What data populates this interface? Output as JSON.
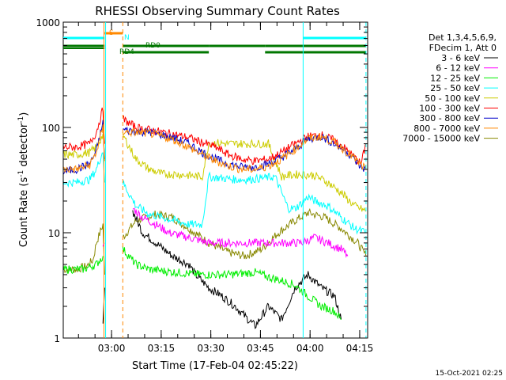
{
  "chart_data": {
    "type": "line",
    "title": "RHESSI Observing Summary Count Rates",
    "xlabel": "Start Time (17-Feb-04 02:45:22)",
    "ylabel_main": "Count Rate (s",
    "ylabel_sup1": "-1",
    "ylabel_mid": " detector",
    "ylabel_sup2": "-1",
    "ylabel_end": ")",
    "y_scale": "log",
    "ylim": [
      1,
      1000
    ],
    "xlim_minutes": [
      0,
      92
    ],
    "x_ticks": [
      {
        "label": "03:00",
        "m": 14.6
      },
      {
        "label": "03:15",
        "m": 29.6
      },
      {
        "label": "03:30",
        "m": 44.6
      },
      {
        "label": "03:45",
        "m": 59.6
      },
      {
        "label": "04:00",
        "m": 74.6
      },
      {
        "label": "04:15",
        "m": 89.6
      }
    ],
    "y_ticks": [
      {
        "label": "1",
        "v": 1
      },
      {
        "label": "10",
        "v": 10
      },
      {
        "label": "100",
        "v": 100
      },
      {
        "label": "1000",
        "v": 1000
      }
    ],
    "legend": {
      "header1": "Det 1,3,4,5,6,9,",
      "header2": "FDecim 1, Att 0",
      "entries": [
        {
          "label": "3 - 6 keV",
          "color": "#000000"
        },
        {
          "label": "6 - 12 keV",
          "color": "#ff00ff"
        },
        {
          "label": "12 - 25 keV",
          "color": "#00ee00"
        },
        {
          "label": "25 - 50 keV",
          "color": "#00ffff"
        },
        {
          "label": "50 - 100 keV",
          "color": "#cccc00"
        },
        {
          "label": "100 - 300 keV",
          "color": "#ff0000"
        },
        {
          "label": "300 - 800 keV",
          "color": "#0000cc"
        },
        {
          "label": "800 - 7000 keV",
          "color": "#ff8800"
        },
        {
          "label": "7000 - 15000 keV",
          "color": "#888800"
        }
      ]
    },
    "flags": {
      "saa_label": "S",
      "night_label": "N",
      "rd4_label": "RD4",
      "rd0_label": "RD0",
      "saa_color": "#ff8800",
      "night_color": "#00ffff",
      "rd_color": "#007700"
    },
    "series": [
      {
        "color": "#888800",
        "points": [
          [
            0,
            4.5
          ],
          [
            4,
            4.5
          ],
          [
            7,
            4.8
          ],
          [
            9,
            5.5
          ],
          [
            10,
            8
          ],
          [
            12,
            12
          ],
          [
            12.5,
            4
          ]
        ],
        "points2": [
          [
            18,
            9
          ],
          [
            22,
            13
          ],
          [
            28,
            15
          ],
          [
            33,
            14
          ],
          [
            38,
            11
          ],
          [
            44,
            8
          ],
          [
            50,
            6.5
          ],
          [
            55,
            6
          ],
          [
            60,
            7
          ],
          [
            65,
            10
          ],
          [
            70,
            13
          ],
          [
            74,
            15.5
          ],
          [
            79,
            14
          ],
          [
            84,
            11
          ],
          [
            89,
            8
          ],
          [
            91.5,
            6
          ]
        ]
      },
      {
        "color": "#000000",
        "points": [
          [
            12,
            1.5
          ],
          [
            12.5,
            3
          ]
        ],
        "points2": [
          [
            21,
            16
          ],
          [
            24,
            10
          ],
          [
            28,
            8
          ],
          [
            33,
            6
          ],
          [
            38,
            5
          ],
          [
            40,
            4
          ],
          [
            44,
            3
          ],
          [
            48,
            2.5
          ],
          [
            52,
            2
          ],
          [
            55,
            1.6
          ],
          [
            58,
            1.3
          ],
          [
            62,
            2
          ],
          [
            66,
            1.5
          ],
          [
            70,
            3
          ],
          [
            74,
            4
          ],
          [
            78,
            3
          ],
          [
            82,
            2.5
          ],
          [
            84,
            1.5
          ]
        ]
      },
      {
        "color": "#ff00ff",
        "points": [
          [
            12,
            7
          ],
          [
            12.5,
            8
          ]
        ],
        "points2": [
          [
            21,
            17
          ],
          [
            24,
            14
          ],
          [
            28,
            12
          ],
          [
            32,
            10
          ],
          [
            38,
            9
          ],
          [
            44,
            8
          ],
          [
            50,
            8
          ],
          [
            56,
            8
          ],
          [
            62,
            8
          ],
          [
            68,
            8
          ],
          [
            72,
            8
          ],
          [
            76,
            9
          ],
          [
            80,
            8
          ],
          [
            84,
            7
          ],
          [
            86,
            6
          ]
        ]
      },
      {
        "color": "#00ee00",
        "points": [
          [
            0,
            4.5
          ],
          [
            6,
            4.5
          ],
          [
            10,
            5
          ],
          [
            12,
            6
          ]
        ],
        "points2": [
          [
            18,
            7
          ],
          [
            22,
            5
          ],
          [
            26,
            4.5
          ],
          [
            34,
            4.2
          ],
          [
            42,
            4
          ],
          [
            50,
            4
          ],
          [
            58,
            4.2
          ],
          [
            62,
            3.8
          ],
          [
            66,
            3.5
          ],
          [
            70,
            3.2
          ],
          [
            74,
            2.5
          ],
          [
            78,
            2
          ],
          [
            82,
            1.8
          ],
          [
            84,
            1.5
          ]
        ]
      },
      {
        "color": "#00ffff",
        "points": [
          [
            0,
            30
          ],
          [
            4,
            30
          ],
          [
            8,
            32
          ],
          [
            10,
            40
          ],
          [
            12,
            60
          ],
          [
            12.5,
            30
          ]
        ],
        "points2": [
          [
            18,
            30
          ],
          [
            22,
            18
          ],
          [
            26,
            15
          ],
          [
            30,
            14
          ],
          [
            34,
            13
          ],
          [
            38,
            12
          ],
          [
            42,
            12
          ],
          [
            44,
            34
          ],
          [
            48,
            33
          ],
          [
            52,
            32
          ],
          [
            56,
            32
          ],
          [
            60,
            33
          ],
          [
            64,
            34
          ],
          [
            68,
            17
          ],
          [
            70,
            17
          ],
          [
            72,
            19
          ],
          [
            74,
            22
          ],
          [
            76,
            20
          ],
          [
            80,
            18
          ],
          [
            84,
            14
          ],
          [
            88,
            11
          ],
          [
            91.5,
            10
          ]
        ]
      },
      {
        "color": "#cccc00",
        "points": [
          [
            0,
            55
          ],
          [
            4,
            55
          ],
          [
            8,
            58
          ],
          [
            10,
            65
          ],
          [
            12,
            85
          ],
          [
            12.5,
            50
          ]
        ],
        "points2": [
          [
            18,
            85
          ],
          [
            22,
            50
          ],
          [
            26,
            40
          ],
          [
            30,
            36
          ],
          [
            34,
            36
          ],
          [
            38,
            35
          ],
          [
            42,
            34
          ],
          [
            44,
            72
          ],
          [
            50,
            70
          ],
          [
            56,
            70
          ],
          [
            62,
            70
          ],
          [
            66,
            34
          ],
          [
            68,
            35
          ],
          [
            72,
            36
          ],
          [
            76,
            35
          ],
          [
            80,
            30
          ],
          [
            84,
            24
          ],
          [
            88,
            18
          ],
          [
            91.5,
            16
          ]
        ]
      },
      {
        "color": "#ff0000",
        "points": [
          [
            0,
            65
          ],
          [
            4,
            65
          ],
          [
            8,
            70
          ],
          [
            10,
            90
          ],
          [
            12,
            150
          ],
          [
            12.5,
            70
          ]
        ],
        "points2": [
          [
            18,
            120
          ],
          [
            22,
            100
          ],
          [
            26,
            95
          ],
          [
            30,
            90
          ],
          [
            34,
            85
          ],
          [
            38,
            80
          ],
          [
            42,
            72
          ],
          [
            46,
            65
          ],
          [
            50,
            55
          ],
          [
            54,
            50
          ],
          [
            58,
            48
          ],
          [
            62,
            50
          ],
          [
            66,
            58
          ],
          [
            70,
            70
          ],
          [
            74,
            82
          ],
          [
            78,
            85
          ],
          [
            82,
            75
          ],
          [
            86,
            60
          ],
          [
            90,
            45
          ],
          [
            91.5,
            70
          ]
        ]
      },
      {
        "color": "#0000cc",
        "points": [
          [
            0,
            38
          ],
          [
            4,
            40
          ],
          [
            8,
            45
          ],
          [
            10,
            60
          ],
          [
            12,
            110
          ],
          [
            12.5,
            50
          ]
        ],
        "points2": [
          [
            18,
            95
          ],
          [
            22,
            92
          ],
          [
            26,
            90
          ],
          [
            30,
            85
          ],
          [
            34,
            78
          ],
          [
            38,
            70
          ],
          [
            42,
            58
          ],
          [
            46,
            50
          ],
          [
            50,
            45
          ],
          [
            54,
            42
          ],
          [
            58,
            42
          ],
          [
            62,
            45
          ],
          [
            66,
            52
          ],
          [
            70,
            62
          ],
          [
            74,
            78
          ],
          [
            78,
            82
          ],
          [
            82,
            70
          ],
          [
            86,
            58
          ],
          [
            90,
            42
          ],
          [
            91.5,
            40
          ]
        ]
      },
      {
        "color": "#ff8800",
        "points": [
          [
            0,
            40
          ],
          [
            4,
            40
          ],
          [
            8,
            44
          ],
          [
            10,
            58
          ],
          [
            12,
            100
          ],
          [
            12.5,
            48
          ]
        ],
        "points2": [
          [
            18,
            90
          ],
          [
            22,
            90
          ],
          [
            26,
            88
          ],
          [
            30,
            82
          ],
          [
            34,
            75
          ],
          [
            38,
            65
          ],
          [
            42,
            55
          ],
          [
            46,
            48
          ],
          [
            50,
            43
          ],
          [
            54,
            40
          ],
          [
            58,
            40
          ],
          [
            62,
            43
          ],
          [
            66,
            50
          ],
          [
            70,
            62
          ],
          [
            74,
            78
          ],
          [
            78,
            82
          ],
          [
            82,
            72
          ],
          [
            86,
            58
          ],
          [
            90,
            44
          ],
          [
            91.5,
            40
          ]
        ]
      }
    ]
  },
  "footer": {
    "timestamp": "15-Oct-2021 02:25"
  }
}
